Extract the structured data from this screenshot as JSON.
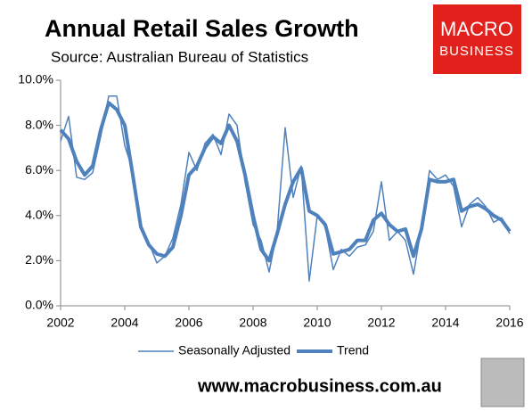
{
  "chart_data": {
    "type": "line",
    "title": "Annual Retail Sales Growth",
    "subtitle": "Source: Australian Bureau of Statistics",
    "logo": [
      "MACRO",
      "BUSINESS"
    ],
    "footer": "www.macrobusiness.com.au",
    "x": [
      2002,
      2002.25,
      2002.5,
      2002.75,
      2003,
      2003.25,
      2003.5,
      2003.75,
      2004,
      2004.25,
      2004.5,
      2004.75,
      2005,
      2005.25,
      2005.5,
      2005.75,
      2006,
      2006.25,
      2006.5,
      2006.75,
      2007,
      2007.25,
      2007.5,
      2007.75,
      2008,
      2008.25,
      2008.5,
      2008.75,
      2009,
      2009.25,
      2009.5,
      2009.75,
      2010,
      2010.25,
      2010.5,
      2010.75,
      2011,
      2011.25,
      2011.5,
      2011.75,
      2012,
      2012.25,
      2012.5,
      2012.75,
      2013,
      2013.25,
      2013.5,
      2013.75,
      2014,
      2014.25,
      2014.5,
      2014.75,
      2015,
      2015.25,
      2015.5,
      2015.75,
      2016
    ],
    "series": [
      {
        "name": "Seasonally Adjusted",
        "color": "#4f81bd",
        "width": 1.5,
        "values": [
          7.3,
          8.4,
          5.7,
          5.6,
          5.9,
          7.5,
          9.3,
          9.3,
          7.1,
          6.0,
          3.4,
          2.8,
          1.9,
          2.2,
          3.0,
          4.5,
          6.8,
          6.0,
          7.2,
          7.6,
          6.7,
          8.5,
          8.0,
          5.5,
          3.6,
          2.9,
          1.5,
          3.3,
          7.9,
          4.8,
          6.2,
          1.1,
          4.0,
          3.5,
          1.6,
          2.5,
          2.2,
          2.6,
          2.7,
          3.3,
          5.5,
          2.9,
          3.3,
          2.9,
          1.4,
          3.5,
          6.0,
          5.6,
          5.8,
          5.3,
          3.5,
          4.5,
          4.8,
          4.4,
          3.7,
          3.9,
          3.2
        ]
      },
      {
        "name": "Trend",
        "color": "#4f81bd",
        "width": 4,
        "values": [
          7.8,
          7.4,
          6.4,
          5.8,
          6.2,
          7.8,
          9.0,
          8.7,
          8.0,
          5.8,
          3.5,
          2.7,
          2.3,
          2.2,
          2.6,
          4.0,
          5.8,
          6.2,
          7.0,
          7.5,
          7.2,
          8.0,
          7.3,
          5.8,
          4.0,
          2.5,
          2.0,
          3.2,
          4.5,
          5.5,
          6.1,
          4.2,
          4.0,
          3.6,
          2.3,
          2.4,
          2.5,
          2.9,
          2.9,
          3.8,
          4.1,
          3.6,
          3.3,
          3.4,
          2.2,
          3.4,
          5.6,
          5.5,
          5.5,
          5.6,
          4.2,
          4.4,
          4.5,
          4.3,
          4.0,
          3.8,
          3.3
        ]
      }
    ],
    "xlim": [
      2002,
      2016
    ],
    "xticks": [
      2002,
      2004,
      2006,
      2008,
      2010,
      2012,
      2014,
      2016
    ],
    "ylim": [
      0,
      10
    ],
    "yticks": [
      {
        "value": 0,
        "label": "0.0%"
      },
      {
        "value": 2,
        "label": "2.0%"
      },
      {
        "value": 4,
        "label": "4.0%"
      },
      {
        "value": 6,
        "label": "6.0%"
      },
      {
        "value": 8,
        "label": "8.0%"
      },
      {
        "value": 10,
        "label": "10.0%"
      }
    ],
    "legend": "bottom"
  }
}
